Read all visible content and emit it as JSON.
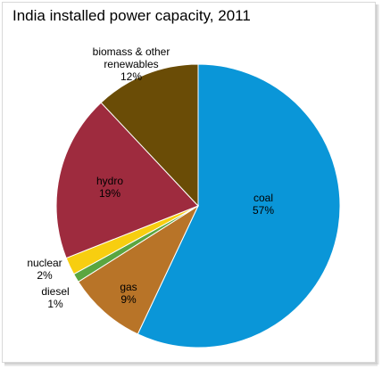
{
  "chart_data": {
    "type": "pie",
    "title": "India installed power capacity, 2011",
    "slices": [
      {
        "label": "coal",
        "value": 57,
        "display": "57%",
        "color": "#0a96d8"
      },
      {
        "label": "gas",
        "value": 9,
        "display": "9%",
        "color": "#b87428"
      },
      {
        "label": "diesel",
        "value": 1,
        "display": "1%",
        "color": "#5aa640"
      },
      {
        "label": "nuclear",
        "value": 2,
        "display": "2%",
        "color": "#f7ce10"
      },
      {
        "label": "hydro",
        "value": 19,
        "display": "19%",
        "color": "#9e2b3e"
      },
      {
        "label": "biomass & other renewables",
        "label_lines": [
          "biomass & other",
          "renewables"
        ],
        "value": 12,
        "display": "12%",
        "color": "#6a4c06"
      }
    ],
    "start_angle_deg": 0,
    "direction": "clockwise",
    "legend": "none"
  }
}
